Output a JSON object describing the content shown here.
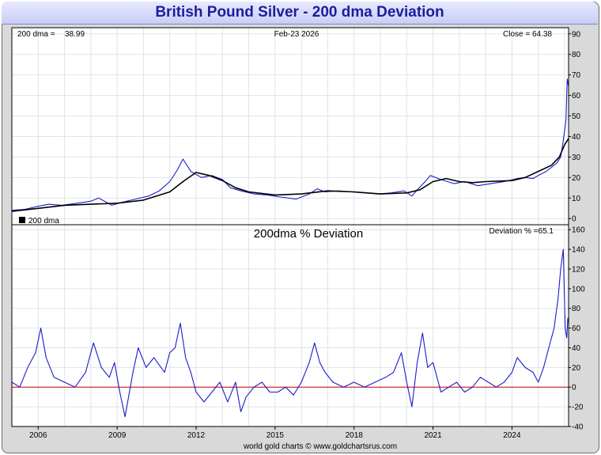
{
  "chart_data": {
    "title": "British Pound Silver - 200 dma Deviation",
    "footer": "world gold charts © www.goldchartsrus.com",
    "x_ticks": [
      "2006",
      "2009",
      "2012",
      "2015",
      "2018",
      "2021",
      "2024"
    ],
    "x_range": [
      2005.0,
      2026.15
    ],
    "upper_panel": {
      "type": "line",
      "info_left_label": "200 dma =",
      "info_left_value": "38.99",
      "info_center": "Feb-23  2026",
      "info_right": "Close = 64.38",
      "legend": "200 dma",
      "ylim": [
        -3,
        93
      ],
      "y_ticks": [
        0,
        10,
        20,
        30,
        40,
        50,
        60,
        70,
        80,
        90
      ],
      "series": [
        {
          "color": "#1c1ccc",
          "x": [
            2005.0,
            2005.5,
            2006.0,
            2006.4,
            2006.9,
            2007.5,
            2008.0,
            2008.3,
            2008.8,
            2009.2,
            2009.7,
            2010.2,
            2010.6,
            2011.0,
            2011.3,
            2011.5,
            2011.8,
            2012.2,
            2012.6,
            2013.0,
            2013.3,
            2013.7,
            2014.2,
            2014.7,
            2015.2,
            2015.8,
            2016.3,
            2016.6,
            2016.9,
            2017.4,
            2017.9,
            2018.4,
            2018.9,
            2019.4,
            2019.9,
            2020.2,
            2020.4,
            2020.7,
            2020.9,
            2021.3,
            2021.8,
            2022.2,
            2022.7,
            2023.2,
            2023.7,
            2024.2,
            2024.5,
            2024.8,
            2025.0,
            2025.3,
            2025.5,
            2025.7,
            2025.85,
            2025.95,
            2026.05,
            2026.1,
            2026.15
          ],
          "y": [
            4,
            4.5,
            6,
            7,
            6.5,
            7.5,
            8.5,
            10,
            6.5,
            8,
            9.5,
            11,
            13.5,
            18,
            24,
            29,
            23,
            20,
            21,
            19,
            15,
            13.5,
            12,
            11.5,
            10.5,
            9.5,
            12,
            14.5,
            13,
            13.5,
            13,
            12.5,
            12,
            12.5,
            13.5,
            11,
            14,
            18,
            21,
            19,
            17,
            18,
            16,
            17,
            18,
            19.5,
            20,
            19.5,
            21,
            23,
            25,
            27,
            30,
            38,
            48,
            68,
            64.38
          ]
        },
        {
          "color": "#000000",
          "x": [
            2005.0,
            2006.0,
            2007.0,
            2008.0,
            2009.0,
            2010.0,
            2011.0,
            2011.5,
            2012.0,
            2012.5,
            2013.0,
            2013.5,
            2014.0,
            2015.0,
            2016.0,
            2017.0,
            2018.0,
            2019.0,
            2020.0,
            2020.5,
            2021.0,
            2021.5,
            2022.0,
            2022.5,
            2023.0,
            2024.0,
            2024.5,
            2025.0,
            2025.5,
            2025.8,
            2026.0,
            2026.15
          ],
          "y": [
            3.5,
            5,
            6.5,
            7,
            7.5,
            9,
            13,
            18,
            22.5,
            21,
            18.5,
            15,
            13,
            11.5,
            12,
            13.5,
            13,
            12,
            12.5,
            14,
            18,
            19.5,
            18,
            17.5,
            18,
            18.5,
            20,
            23,
            26,
            30,
            36,
            38.99
          ]
        }
      ]
    },
    "lower_panel": {
      "type": "line",
      "title": "200dma  %  Deviation",
      "info_right": "Deviation % =65.1",
      "ylim": [
        -40,
        165
      ],
      "y_ticks": [
        -40,
        -20,
        0,
        20,
        40,
        60,
        80,
        100,
        120,
        140,
        160
      ],
      "zero_line_color": "#cc0000",
      "series": [
        {
          "color": "#1c1ccc",
          "x": [
            2005.0,
            2005.3,
            2005.6,
            2005.9,
            2006.1,
            2006.3,
            2006.6,
            2007.0,
            2007.4,
            2007.8,
            2008.1,
            2008.4,
            2008.7,
            2008.9,
            2009.1,
            2009.3,
            2009.6,
            2009.8,
            2010.1,
            2010.4,
            2010.8,
            2011.0,
            2011.2,
            2011.4,
            2011.6,
            2011.8,
            2012.0,
            2012.3,
            2012.6,
            2012.9,
            2013.2,
            2013.5,
            2013.7,
            2013.9,
            2014.2,
            2014.5,
            2014.8,
            2015.1,
            2015.4,
            2015.7,
            2016.0,
            2016.3,
            2016.5,
            2016.7,
            2016.9,
            2017.2,
            2017.6,
            2018.0,
            2018.4,
            2018.8,
            2019.2,
            2019.5,
            2019.8,
            2020.0,
            2020.2,
            2020.4,
            2020.6,
            2020.8,
            2021.0,
            2021.3,
            2021.6,
            2021.9,
            2022.2,
            2022.5,
            2022.8,
            2023.1,
            2023.4,
            2023.7,
            2024.0,
            2024.2,
            2024.5,
            2024.8,
            2025.0,
            2025.2,
            2025.4,
            2025.6,
            2025.75,
            2025.85,
            2025.95,
            2026.02,
            2026.08,
            2026.12,
            2026.15
          ],
          "y": [
            5,
            0,
            20,
            35,
            60,
            30,
            10,
            5,
            0,
            15,
            45,
            20,
            10,
            25,
            -5,
            -30,
            15,
            40,
            20,
            30,
            15,
            35,
            40,
            65,
            30,
            15,
            -5,
            -15,
            -5,
            5,
            -15,
            5,
            -25,
            -10,
            0,
            5,
            -5,
            -5,
            0,
            -8,
            5,
            25,
            45,
            25,
            15,
            5,
            0,
            5,
            0,
            5,
            10,
            15,
            35,
            5,
            -20,
            25,
            55,
            20,
            25,
            -5,
            0,
            5,
            -5,
            0,
            10,
            5,
            0,
            5,
            15,
            30,
            20,
            15,
            5,
            20,
            40,
            60,
            90,
            120,
            140,
            60,
            50,
            70,
            65.1
          ]
        }
      ]
    }
  }
}
